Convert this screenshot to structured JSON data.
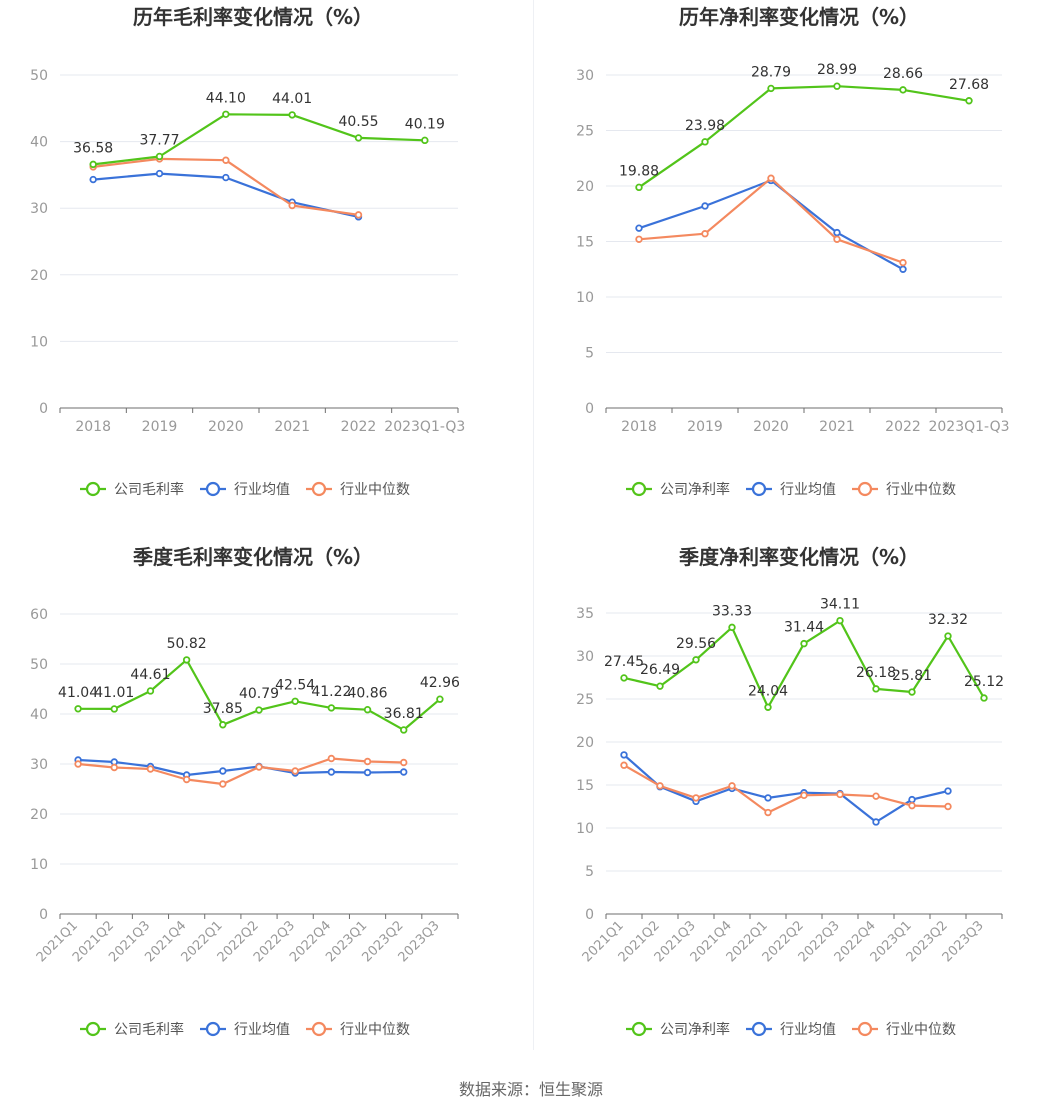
{
  "legend_labels": {
    "company_gross": "公司毛利率",
    "company_net": "公司净利率",
    "industry_avg": "行业均值",
    "industry_median": "行业中位数"
  },
  "colors": {
    "company": "#52c41a",
    "industry_avg": "#3a72d9",
    "industry_median": "#f4895f",
    "grid": "#e5e8ef",
    "axis": "#6e6e6e",
    "tick_text": "#999999",
    "label_text": "#333333"
  },
  "source": "数据来源：恒生聚源",
  "chart_data": [
    {
      "type": "line",
      "title": "历年毛利率变化情况（%）",
      "categories": [
        "2018",
        "2019",
        "2020",
        "2021",
        "2022",
        "2023Q1-Q3"
      ],
      "ylim": [
        0,
        50
      ],
      "yticks": [
        0,
        10,
        20,
        30,
        40,
        50
      ],
      "legend_position": "bottom",
      "series": [
        {
          "key": "company_gross",
          "values": [
            36.58,
            37.77,
            44.1,
            44.01,
            40.55,
            40.19
          ],
          "labels": [
            "36.58",
            "37.77",
            "44.10",
            "44.01",
            "40.55",
            "40.19"
          ]
        },
        {
          "key": "industry_avg",
          "values": [
            34.3,
            35.2,
            34.6,
            30.9,
            28.7,
            null
          ]
        },
        {
          "key": "industry_median",
          "values": [
            36.2,
            37.4,
            37.2,
            30.4,
            29.0,
            null
          ]
        }
      ]
    },
    {
      "type": "line",
      "title": "历年净利率变化情况（%）",
      "categories": [
        "2018",
        "2019",
        "2020",
        "2021",
        "2022",
        "2023Q1-Q3"
      ],
      "ylim": [
        0,
        30
      ],
      "yticks": [
        0,
        5,
        10,
        15,
        20,
        25,
        30
      ],
      "legend_position": "bottom",
      "series": [
        {
          "key": "company_net",
          "values": [
            19.88,
            23.98,
            28.79,
            28.99,
            28.66,
            27.68
          ],
          "labels": [
            "19.88",
            "23.98",
            "28.79",
            "28.99",
            "28.66",
            "27.68"
          ]
        },
        {
          "key": "industry_avg",
          "values": [
            16.2,
            18.2,
            20.5,
            15.8,
            12.5,
            null
          ]
        },
        {
          "key": "industry_median",
          "values": [
            15.2,
            15.7,
            20.7,
            15.2,
            13.1,
            null
          ]
        }
      ]
    },
    {
      "type": "line",
      "title": "季度毛利率变化情况（%）",
      "categories": [
        "2021Q1",
        "2021Q2",
        "2021Q3",
        "2021Q4",
        "2022Q1",
        "2022Q2",
        "2022Q3",
        "2022Q4",
        "2023Q1",
        "2023Q2",
        "2023Q3"
      ],
      "ylim": [
        0,
        60
      ],
      "yticks": [
        0,
        10,
        20,
        30,
        40,
        50,
        60
      ],
      "legend_position": "bottom",
      "series": [
        {
          "key": "company_gross",
          "values": [
            41.04,
            41.01,
            44.61,
            50.82,
            37.85,
            40.79,
            42.54,
            41.22,
            40.86,
            36.81,
            42.96
          ],
          "labels": [
            "41.04",
            "41.01",
            "44.61",
            "50.82",
            "37.85",
            "40.79",
            "42.54",
            "41.22",
            "40.86",
            "36.81",
            "42.96"
          ]
        },
        {
          "key": "industry_avg",
          "values": [
            30.8,
            30.4,
            29.5,
            27.8,
            28.6,
            29.5,
            28.2,
            28.4,
            28.3,
            28.4,
            null
          ]
        },
        {
          "key": "industry_median",
          "values": [
            30.0,
            29.3,
            29.0,
            26.9,
            26.0,
            29.4,
            28.6,
            31.1,
            30.5,
            30.3,
            null
          ]
        }
      ]
    },
    {
      "type": "line",
      "title": "季度净利率变化情况（%）",
      "categories": [
        "2021Q1",
        "2021Q2",
        "2021Q3",
        "2021Q4",
        "2022Q1",
        "2022Q2",
        "2022Q3",
        "2022Q4",
        "2023Q1",
        "2023Q2",
        "2023Q3"
      ],
      "ylim": [
        0,
        35
      ],
      "yticks": [
        0,
        5,
        10,
        15,
        20,
        25,
        30,
        35
      ],
      "legend_position": "bottom",
      "series": [
        {
          "key": "company_net",
          "values": [
            27.45,
            26.49,
            29.56,
            33.33,
            24.04,
            31.44,
            34.11,
            26.18,
            25.81,
            32.32,
            25.12
          ],
          "labels": [
            "27.45",
            "26.49",
            "29.56",
            "33.33",
            "24.04",
            "31.44",
            "34.11",
            "26.18",
            "25.81",
            "32.32",
            "25.12"
          ]
        },
        {
          "key": "industry_avg",
          "values": [
            18.5,
            14.8,
            13.1,
            14.6,
            13.5,
            14.1,
            14.0,
            10.7,
            13.3,
            14.3,
            null
          ]
        },
        {
          "key": "industry_median",
          "values": [
            17.3,
            14.9,
            13.5,
            14.9,
            11.8,
            13.8,
            13.9,
            13.7,
            12.6,
            12.5,
            null
          ]
        }
      ]
    }
  ]
}
